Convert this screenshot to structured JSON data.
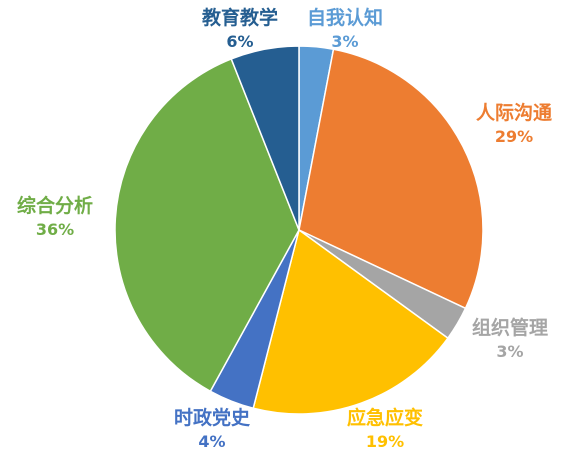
{
  "chart_data": {
    "type": "pie",
    "start_angle_deg": 0,
    "direction": "clockwise",
    "slices": [
      {
        "label": "自我认知",
        "value": 3,
        "value_label": "3%",
        "color": "#5B9BD5"
      },
      {
        "label": "人际沟通",
        "value": 29,
        "value_label": "29%",
        "color": "#ED7D31"
      },
      {
        "label": "组织管理",
        "value": 3,
        "value_label": "3%",
        "color": "#A5A5A5"
      },
      {
        "label": "应急应变",
        "value": 19,
        "value_label": "19%",
        "color": "#FFC000"
      },
      {
        "label": "时政党史",
        "value": 4,
        "value_label": "4%",
        "color": "#4472C4"
      },
      {
        "label": "综合分析",
        "value": 36,
        "value_label": "36%",
        "color": "#70AD47"
      },
      {
        "label": "教育教学",
        "value": 6,
        "value_label": "6%",
        "color": "#255E91"
      }
    ],
    "title": "",
    "legend": "none"
  }
}
